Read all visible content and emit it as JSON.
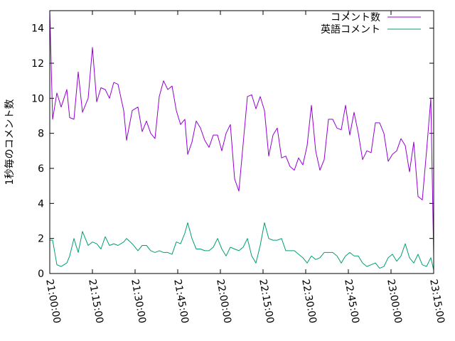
{
  "chart_data": {
    "type": "line",
    "title": "",
    "xlabel": "",
    "ylabel": "1秒毎のコメント数",
    "ylim": [
      0,
      15
    ],
    "yticks": [
      "0",
      "2",
      "4",
      "6",
      "8",
      "10",
      "12",
      "14"
    ],
    "xlim": [
      "21:00:00",
      "23:15:00"
    ],
    "xticks": [
      "21:00:00",
      "21:15:00",
      "21:30:00",
      "21:45:00",
      "22:00:00",
      "22:15:00",
      "22:30:00",
      "22:45:00",
      "23:00:00",
      "23:15:00"
    ],
    "grid": false,
    "legend_position": "top-right",
    "series": [
      {
        "name": "コメント数",
        "color": "#9400d3",
        "x": [
          "21:00:00",
          "21:01:00",
          "21:02:30",
          "21:04:00",
          "21:06:00",
          "21:07:00",
          "21:08:30",
          "21:10:00",
          "21:11:30",
          "21:13:30",
          "21:15:00",
          "21:16:30",
          "21:18:00",
          "21:19:30",
          "21:21:00",
          "21:22:30",
          "21:24:00",
          "21:26:00",
          "21:27:00",
          "21:29:00",
          "21:31:00",
          "21:32:30",
          "21:34:00",
          "21:35:30",
          "21:37:00",
          "21:38:30",
          "21:40:00",
          "21:41:30",
          "21:43:00",
          "21:44:30",
          "21:46:00",
          "21:47:30",
          "21:48:30",
          "21:50:00",
          "21:51:30",
          "21:53:00",
          "21:54:30",
          "21:56:00",
          "21:57:30",
          "21:59:00",
          "22:00:30",
          "22:02:00",
          "22:03:30",
          "22:05:00",
          "22:06:30",
          "22:08:00",
          "22:09:30",
          "22:11:00",
          "22:12:30",
          "22:14:00",
          "22:15:30",
          "22:17:00",
          "22:18:30",
          "22:20:00",
          "22:21:30",
          "22:23:00",
          "22:24:30",
          "22:26:00",
          "22:27:30",
          "22:29:00",
          "22:30:30",
          "22:32:00",
          "22:33:30",
          "22:35:00",
          "22:36:30",
          "22:38:00",
          "22:39:30",
          "22:41:00",
          "22:42:30",
          "22:44:00",
          "22:45:30",
          "22:47:00",
          "22:48:30",
          "22:50:00",
          "22:51:30",
          "22:53:00",
          "22:54:30",
          "22:56:00",
          "22:57:30",
          "22:59:00",
          "23:00:30",
          "23:02:00",
          "23:03:30",
          "23:05:00",
          "23:06:30",
          "23:08:00",
          "23:09:30",
          "23:11:00",
          "23:12:30",
          "23:14:00",
          "23:15:00"
        ],
        "values": [
          15.0,
          8.8,
          10.3,
          9.5,
          10.5,
          8.9,
          8.8,
          11.5,
          9.2,
          10.0,
          12.9,
          9.8,
          10.6,
          10.5,
          10.0,
          10.9,
          10.8,
          9.3,
          7.6,
          9.3,
          9.5,
          8.1,
          8.7,
          8.0,
          7.7,
          10.1,
          11.0,
          10.5,
          10.7,
          9.3,
          8.5,
          8.8,
          6.8,
          7.5,
          8.7,
          8.3,
          7.6,
          7.2,
          7.9,
          7.9,
          7.0,
          8.0,
          8.5,
          5.4,
          4.7,
          7.4,
          10.1,
          10.2,
          9.4,
          10.1,
          9.3,
          6.7,
          7.9,
          8.3,
          6.6,
          6.7,
          6.1,
          5.9,
          6.6,
          6.2,
          7.3,
          9.6,
          7.0,
          5.9,
          6.5,
          8.8,
          8.8,
          8.3,
          8.2,
          9.6,
          7.9,
          9.2,
          8.0,
          6.5,
          7.0,
          6.9,
          8.6,
          8.6,
          8.0,
          6.4,
          6.8,
          7.0,
          7.7,
          7.3,
          5.8,
          7.5,
          4.4,
          4.2,
          7.0,
          10.0,
          1.0
        ]
      },
      {
        "name": "英語コメント",
        "color": "#009e73",
        "x": [
          "21:00:00",
          "21:01:00",
          "21:02:30",
          "21:04:00",
          "21:06:00",
          "21:07:00",
          "21:08:30",
          "21:10:00",
          "21:11:30",
          "21:13:30",
          "21:15:00",
          "21:16:30",
          "21:18:00",
          "21:19:30",
          "21:21:00",
          "21:22:30",
          "21:24:00",
          "21:26:00",
          "21:27:00",
          "21:29:00",
          "21:31:00",
          "21:32:30",
          "21:34:00",
          "21:35:30",
          "21:37:00",
          "21:38:30",
          "21:40:00",
          "21:41:30",
          "21:43:00",
          "21:44:30",
          "21:46:00",
          "21:47:30",
          "21:48:30",
          "21:50:00",
          "21:51:30",
          "21:53:00",
          "21:54:30",
          "21:56:00",
          "21:57:30",
          "21:59:00",
          "22:00:30",
          "22:02:00",
          "22:03:30",
          "22:05:00",
          "22:06:30",
          "22:08:00",
          "22:09:30",
          "22:11:00",
          "22:12:30",
          "22:14:00",
          "22:15:30",
          "22:17:00",
          "22:18:30",
          "22:20:00",
          "22:21:30",
          "22:23:00",
          "22:24:30",
          "22:26:00",
          "22:27:30",
          "22:29:00",
          "22:30:30",
          "22:32:00",
          "22:33:30",
          "22:35:00",
          "22:36:30",
          "22:38:00",
          "22:39:30",
          "22:41:00",
          "22:42:30",
          "22:44:00",
          "22:45:30",
          "22:47:00",
          "22:48:30",
          "22:50:00",
          "22:51:30",
          "22:53:00",
          "22:54:30",
          "22:56:00",
          "22:57:30",
          "22:59:00",
          "23:00:30",
          "23:02:00",
          "23:03:30",
          "23:05:00",
          "23:06:30",
          "23:08:00",
          "23:09:30",
          "23:11:00",
          "23:12:30",
          "23:14:00",
          "23:15:00"
        ],
        "values": [
          1.9,
          1.9,
          0.5,
          0.4,
          0.6,
          1.0,
          2.0,
          1.2,
          2.4,
          1.6,
          1.8,
          1.7,
          1.4,
          2.1,
          1.6,
          1.7,
          1.6,
          1.8,
          2.0,
          1.7,
          1.3,
          1.6,
          1.6,
          1.3,
          1.2,
          1.3,
          1.2,
          1.2,
          1.1,
          1.8,
          1.7,
          2.3,
          2.9,
          2.0,
          1.4,
          1.4,
          1.3,
          1.3,
          1.5,
          2.0,
          1.4,
          1.0,
          1.5,
          1.4,
          1.3,
          1.5,
          2.0,
          1.0,
          0.6,
          1.6,
          2.9,
          2.0,
          1.9,
          1.9,
          2.0,
          1.3,
          1.3,
          1.3,
          1.1,
          0.9,
          0.6,
          1.0,
          0.8,
          0.9,
          1.2,
          1.2,
          1.2,
          1.0,
          0.6,
          1.0,
          1.2,
          1.0,
          1.0,
          0.6,
          0.4,
          0.5,
          0.6,
          0.3,
          0.4,
          0.9,
          1.1,
          0.7,
          1.0,
          1.7,
          0.9,
          0.6,
          1.1,
          0.5,
          0.4,
          0.9,
          0.2
        ]
      }
    ]
  }
}
